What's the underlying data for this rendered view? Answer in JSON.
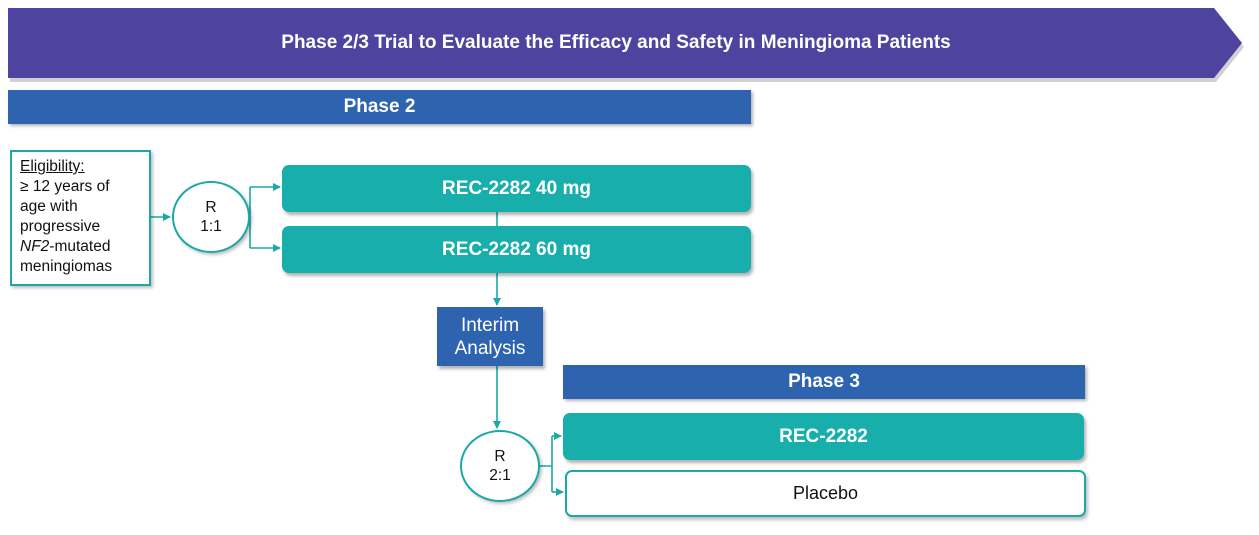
{
  "banner": {
    "title": "Phase 2/3 Trial to Evaluate the Efficacy and Safety in Meningioma Patients"
  },
  "phase2": {
    "label": "Phase 2"
  },
  "phase3": {
    "label": "Phase 3"
  },
  "eligibility": {
    "heading": "Eligibility:",
    "line1": "≥ 12 years of",
    "line2": "age with",
    "line3": "progressive",
    "gene": "NF2",
    "line4_suffix": "-mutated",
    "line5": "meningiomas"
  },
  "randomization1": {
    "letter": "R",
    "ratio": "1:1"
  },
  "randomization2": {
    "letter": "R",
    "ratio": "2:1"
  },
  "arms": {
    "dose40": "REC-2282 40 mg",
    "dose60": "REC-2282 60 mg",
    "rec": "REC-2282",
    "placebo": "Placebo"
  },
  "interim": {
    "line1": "Interim",
    "line2": "Analysis"
  },
  "colors": {
    "banner": "#4f43a0",
    "phase_bar": "#2e63b0",
    "teal": "#17aeac",
    "border_teal": "#1aa9a6"
  }
}
